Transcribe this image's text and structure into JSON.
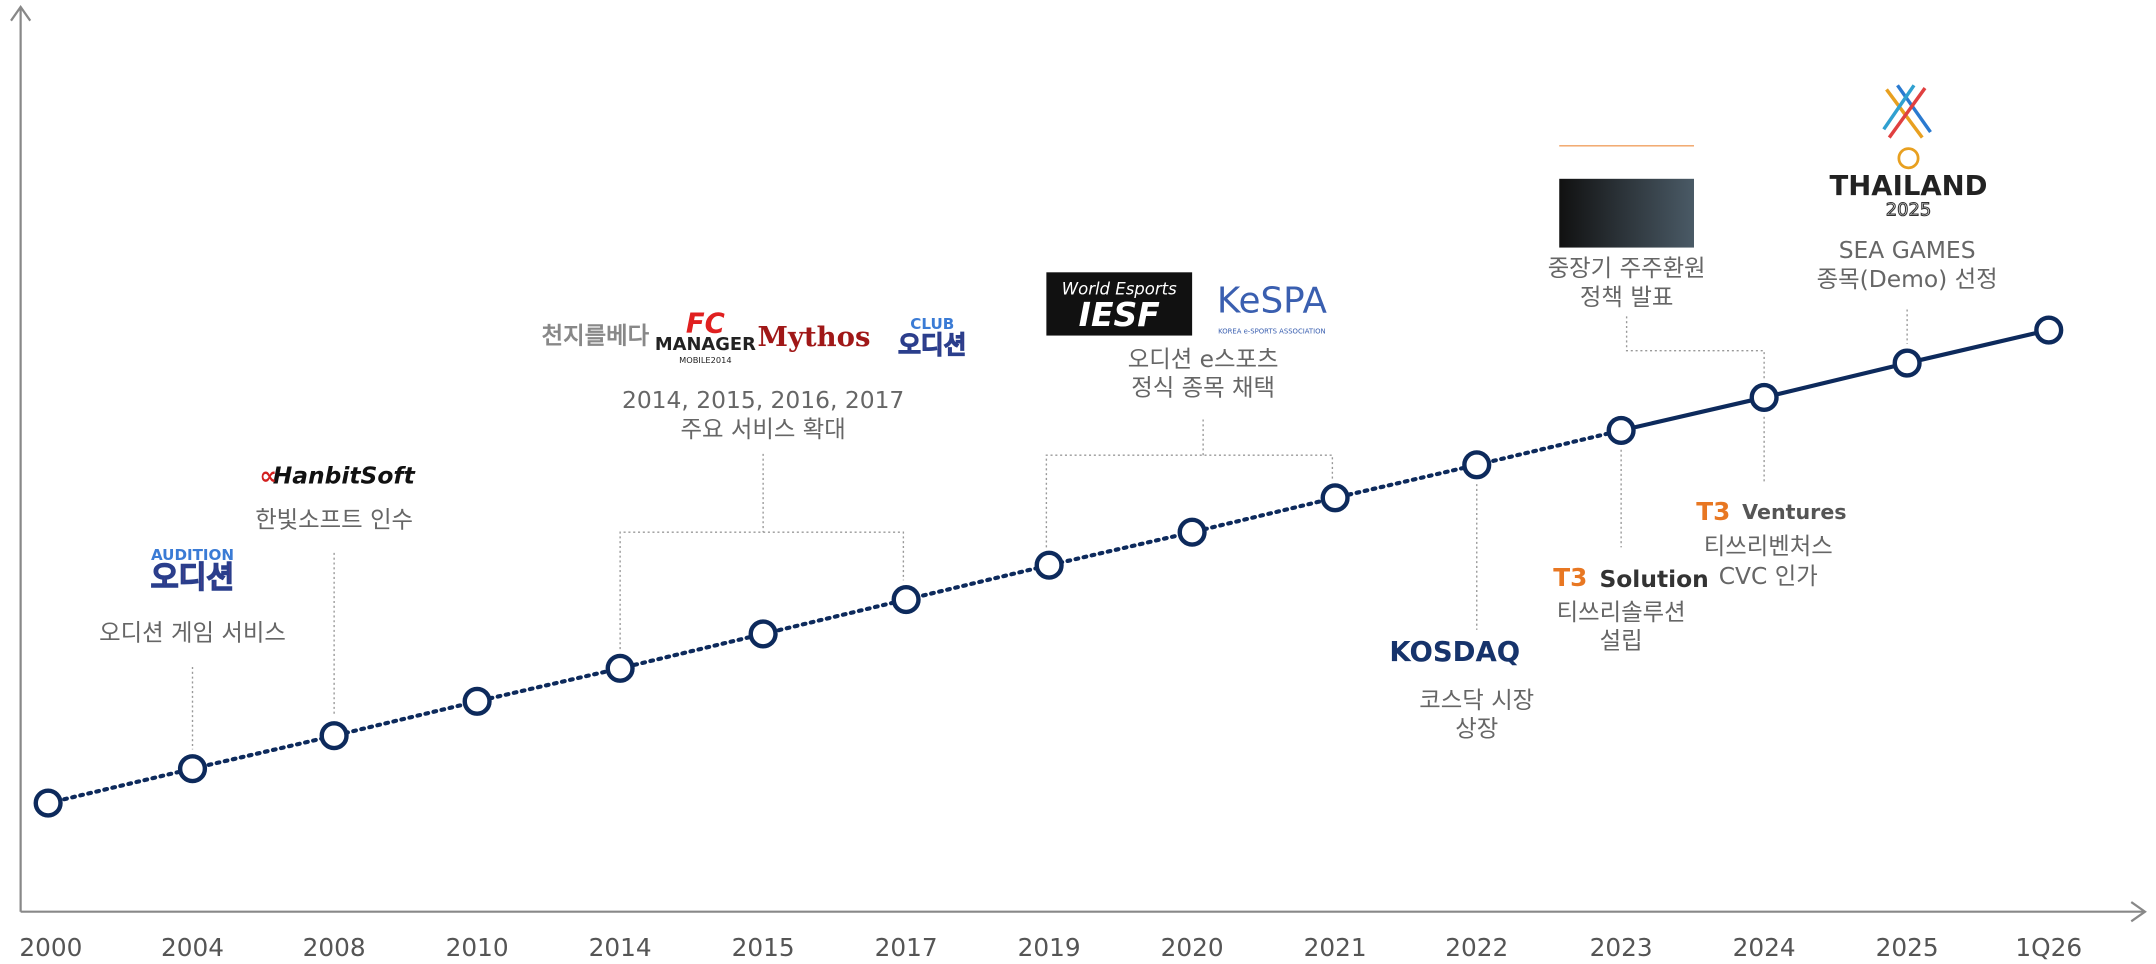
{
  "years": [
    "2000",
    "2004",
    "2008",
    "2010",
    "2014",
    "2015",
    "2017",
    "2019",
    "2020",
    "2021",
    "2022",
    "2023",
    "2024",
    "2025",
    "1Q26"
  ],
  "milestones": [
    {
      "lines": [
        "오디션 게임 서비스"
      ],
      "logos": [
        "AUDITION",
        "오디션"
      ]
    },
    {
      "lines": [
        "한빛소프트 인수"
      ],
      "logos": [
        "HanbitSoft"
      ]
    },
    {
      "lines": [
        "2014, 2015, 2016, 2017",
        "주요 서비스 확대"
      ],
      "logos": [
        "천지를베다",
        "FC",
        "MANAGER",
        "MOBILE2014",
        "Mythos",
        "CLUB",
        "오디션"
      ]
    },
    {
      "lines": [
        "오디션 e스포츠",
        "정식 종목 채택"
      ],
      "logos": [
        "World Esports",
        "IESF",
        "KeSPA",
        "KOREA e-SPORTS ASSOCIATION"
      ]
    },
    {
      "lines": [
        "코스닥 시장",
        "상장"
      ],
      "logos": [
        "KOSDAQ"
      ]
    },
    {
      "lines": [
        "티쓰리솔루션",
        "설립"
      ],
      "logos": [
        "T3",
        "Solution"
      ]
    },
    {
      "lines": [
        "중장기 주주환원",
        "정책 발표"
      ],
      "logos": []
    },
    {
      "lines": [
        "티쓰리벤처스",
        "CVC 인가"
      ],
      "logos": [
        "T3",
        "Ventures"
      ]
    },
    {
      "lines": [
        "SEA GAMES",
        "종목(Demo) 선정"
      ],
      "logos": [
        "THAILAND",
        "2025"
      ]
    }
  ]
}
